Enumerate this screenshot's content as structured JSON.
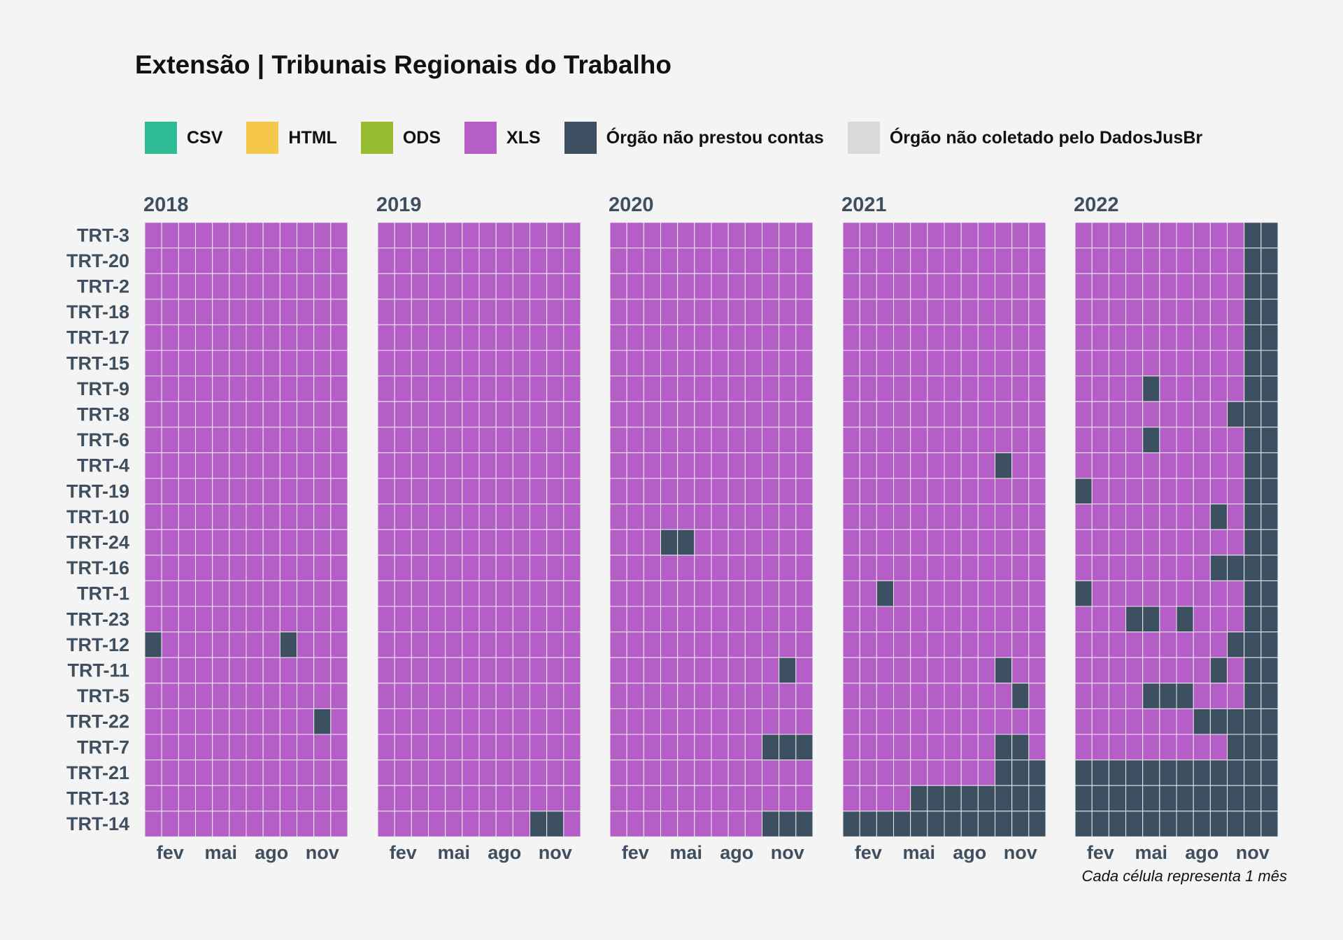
{
  "chart_data": {
    "type": "heatmap",
    "title": "Extensão | Tribunais Regionais do Trabalho",
    "caption": "Cada célula representa 1 mês",
    "legend": [
      {
        "key": "CSV",
        "label": "CSV",
        "color": "#2ebb96"
      },
      {
        "key": "HTML",
        "label": "HTML",
        "color": "#f5c84c"
      },
      {
        "key": "ODS",
        "label": "ODS",
        "color": "#97bb31"
      },
      {
        "key": "XLS",
        "label": "XLS",
        "color": "#b55ec8"
      },
      {
        "key": "NP",
        "label": "Órgão não prestou contas",
        "color": "#3c5061"
      },
      {
        "key": "NC",
        "label": "Órgão não coletado pelo DadosJusBr",
        "color": "#d9d9d9"
      }
    ],
    "years": [
      "2018",
      "2019",
      "2020",
      "2021",
      "2022"
    ],
    "month_ticks": [
      {
        "label": "fev",
        "month": 2
      },
      {
        "label": "mai",
        "month": 5
      },
      {
        "label": "ago",
        "month": 8
      },
      {
        "label": "nov",
        "month": 11
      }
    ],
    "default_format": "XLS",
    "organs": [
      "TRT-3",
      "TRT-20",
      "TRT-2",
      "TRT-18",
      "TRT-17",
      "TRT-15",
      "TRT-9",
      "TRT-8",
      "TRT-6",
      "TRT-4",
      "TRT-19",
      "TRT-10",
      "TRT-24",
      "TRT-16",
      "TRT-1",
      "TRT-23",
      "TRT-12",
      "TRT-11",
      "TRT-5",
      "TRT-22",
      "TRT-7",
      "TRT-21",
      "TRT-13",
      "TRT-14"
    ],
    "not_reported": {
      "2018": {
        "TRT-12": [
          1,
          9
        ],
        "TRT-22": [
          11
        ]
      },
      "2019": {
        "TRT-14": [
          10,
          11
        ]
      },
      "2020": {
        "TRT-24": [
          4,
          5
        ],
        "TRT-11": [
          11
        ],
        "TRT-7": [
          10,
          11,
          12
        ],
        "TRT-14": [
          10,
          11,
          12
        ]
      },
      "2021": {
        "TRT-4": [
          10
        ],
        "TRT-1": [
          3
        ],
        "TRT-11": [
          10
        ],
        "TRT-5": [
          11
        ],
        "TRT-7": [
          10,
          11
        ],
        "TRT-21": [
          10,
          11,
          12
        ],
        "TRT-13": [
          5,
          6,
          7,
          8,
          9,
          10,
          11,
          12
        ],
        "TRT-14": [
          1,
          2,
          3,
          4,
          5,
          6,
          7,
          8,
          9,
          10,
          11,
          12
        ]
      },
      "2022": {
        "TRT-3": [
          11,
          12
        ],
        "TRT-20": [
          11,
          12
        ],
        "TRT-2": [
          11,
          12
        ],
        "TRT-18": [
          11,
          12
        ],
        "TRT-17": [
          11,
          12
        ],
        "TRT-15": [
          11,
          12
        ],
        "TRT-9": [
          5,
          11,
          12
        ],
        "TRT-8": [
          10,
          11,
          12
        ],
        "TRT-6": [
          5,
          11,
          12
        ],
        "TRT-4": [
          11,
          12
        ],
        "TRT-19": [
          1,
          11,
          12
        ],
        "TRT-10": [
          9,
          11,
          12
        ],
        "TRT-24": [
          11,
          12
        ],
        "TRT-16": [
          9,
          10,
          11,
          12
        ],
        "TRT-1": [
          1,
          11,
          12
        ],
        "TRT-23": [
          4,
          5,
          7,
          11,
          12
        ],
        "TRT-12": [
          10,
          11,
          12
        ],
        "TRT-11": [
          9,
          11,
          12
        ],
        "TRT-5": [
          5,
          6,
          7,
          11,
          12
        ],
        "TRT-22": [
          8,
          9,
          10,
          11,
          12
        ],
        "TRT-7": [
          10,
          11,
          12
        ],
        "TRT-21": [
          1,
          2,
          3,
          4,
          5,
          6,
          7,
          8,
          9,
          10,
          11,
          12
        ],
        "TRT-13": [
          1,
          2,
          3,
          4,
          5,
          6,
          7,
          8,
          9,
          10,
          11,
          12
        ],
        "TRT-14": [
          1,
          2,
          3,
          4,
          5,
          6,
          7,
          8,
          9,
          10,
          11,
          12
        ]
      }
    }
  }
}
